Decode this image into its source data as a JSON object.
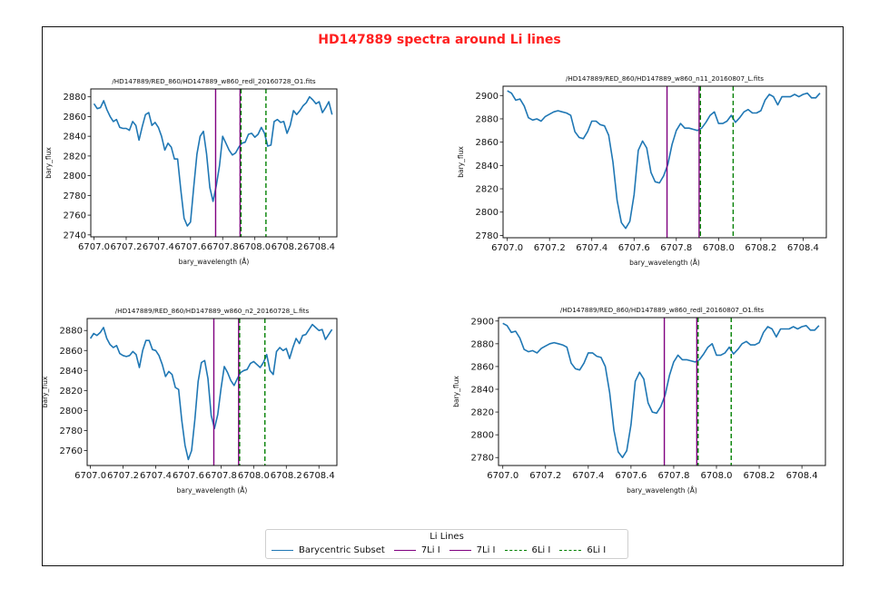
{
  "figure_title": "HD147889 spectra around Li lines",
  "colors": {
    "series": "#1f77b4",
    "li7": "#800080",
    "li6": "#008000",
    "title": "#ff2020"
  },
  "legend": {
    "title": "Li Lines",
    "location": "lower-center",
    "entries": [
      {
        "label": "Barycentric Subset",
        "color": "#1f77b4",
        "style": "solid"
      },
      {
        "label": "7Li I",
        "color": "#800080",
        "style": "solid"
      },
      {
        "label": "7Li I",
        "color": "#800080",
        "style": "solid"
      },
      {
        "label": "6Li I",
        "color": "#008000",
        "style": "dashed"
      },
      {
        "label": "6Li I",
        "color": "#008000",
        "style": "dashed"
      }
    ]
  },
  "chart_data": [
    {
      "type": "line",
      "title": "/HD147889/RED_860/HD147889_w860_redl_20160728_O1.fits",
      "xlabel": "bary_wavelength (Å)",
      "ylabel": "bary_flux",
      "xlim": [
        6706.98,
        6708.51
      ],
      "ylim": [
        2738,
        2888
      ],
      "xticks": [
        6707.0,
        6707.2,
        6707.4,
        6707.6,
        6707.8,
        6708.0,
        6708.2,
        6708.4
      ],
      "yticks": [
        2740,
        2760,
        2780,
        2800,
        2820,
        2840,
        2860,
        2880
      ],
      "x": [
        6707.0,
        6707.02,
        6707.04,
        6707.06,
        6707.08,
        6707.1,
        6707.12,
        6707.14,
        6707.16,
        6707.18,
        6707.2,
        6707.22,
        6707.24,
        6707.26,
        6707.28,
        6707.3,
        6707.32,
        6707.34,
        6707.36,
        6707.38,
        6707.4,
        6707.42,
        6707.44,
        6707.46,
        6707.48,
        6707.5,
        6707.52,
        6707.54,
        6707.56,
        6707.58,
        6707.6,
        6707.62,
        6707.64,
        6707.66,
        6707.68,
        6707.7,
        6707.72,
        6707.74,
        6707.76,
        6707.78,
        6707.8,
        6707.82,
        6707.84,
        6707.86,
        6707.88,
        6707.9,
        6707.92,
        6707.94,
        6707.96,
        6707.98,
        6708.0,
        6708.02,
        6708.04,
        6708.06,
        6708.08,
        6708.1,
        6708.12,
        6708.14,
        6708.16,
        6708.18,
        6708.2,
        6708.22,
        6708.24,
        6708.26,
        6708.28,
        6708.3,
        6708.32,
        6708.34,
        6708.36,
        6708.38,
        6708.4,
        6708.42,
        6708.44,
        6708.46,
        6708.48
      ],
      "series": [
        {
          "values": [
            2873,
            2868,
            2869,
            2876,
            2867,
            2860,
            2855,
            2857,
            2849,
            2848,
            2848,
            2846,
            2855,
            2851,
            2836,
            2850,
            2862,
            2864,
            2851,
            2854,
            2849,
            2840,
            2826,
            2833,
            2829,
            2817,
            2817,
            2785,
            2757,
            2749,
            2753,
            2789,
            2822,
            2840,
            2845,
            2822,
            2788,
            2774,
            2790,
            2810,
            2840,
            2833,
            2826,
            2821,
            2823,
            2829,
            2833,
            2834,
            2842,
            2843,
            2839,
            2842,
            2849,
            2843,
            2830,
            2831,
            2855,
            2857,
            2854,
            2855,
            2843,
            2851,
            2866,
            2862,
            2866,
            2871,
            2874,
            2880,
            2877,
            2873,
            2875,
            2864,
            2869,
            2875,
            2862
          ]
        }
      ],
      "vlines": [
        {
          "x": 6707.756,
          "color": "#800080",
          "style": "solid"
        },
        {
          "x": 6707.908,
          "color": "#800080",
          "style": "solid"
        },
        {
          "x": 6707.914,
          "color": "#008000",
          "style": "dashed"
        },
        {
          "x": 6708.069,
          "color": "#008000",
          "style": "dashed"
        }
      ]
    },
    {
      "type": "line",
      "title": "/HD147889/RED_860/HD147889_w860_n11_20160807_L.fits",
      "xlabel": "bary_wavelength (Å)",
      "ylabel": "bary_flux",
      "xlim": [
        6706.98,
        6708.51
      ],
      "ylim": [
        2778,
        2908
      ],
      "xticks": [
        6707.0,
        6707.2,
        6707.4,
        6707.6,
        6707.8,
        6708.0,
        6708.2,
        6708.4
      ],
      "yticks": [
        2780,
        2800,
        2820,
        2840,
        2860,
        2880,
        2900
      ],
      "x": [
        6707.0,
        6707.02,
        6707.04,
        6707.06,
        6707.08,
        6707.1,
        6707.12,
        6707.14,
        6707.16,
        6707.18,
        6707.2,
        6707.22,
        6707.24,
        6707.26,
        6707.28,
        6707.3,
        6707.32,
        6707.34,
        6707.36,
        6707.38,
        6707.4,
        6707.42,
        6707.44,
        6707.46,
        6707.48,
        6707.5,
        6707.52,
        6707.54,
        6707.56,
        6707.58,
        6707.6,
        6707.62,
        6707.64,
        6707.66,
        6707.68,
        6707.7,
        6707.72,
        6707.74,
        6707.76,
        6707.78,
        6707.8,
        6707.82,
        6707.84,
        6707.86,
        6707.88,
        6707.9,
        6707.92,
        6707.94,
        6707.96,
        6707.98,
        6708.0,
        6708.02,
        6708.04,
        6708.06,
        6708.08,
        6708.1,
        6708.12,
        6708.14,
        6708.16,
        6708.18,
        6708.2,
        6708.22,
        6708.24,
        6708.26,
        6708.28,
        6708.3,
        6708.32,
        6708.34,
        6708.36,
        6708.38,
        6708.4,
        6708.42,
        6708.44,
        6708.46,
        6708.48
      ],
      "series": [
        {
          "values": [
            2904,
            2902,
            2896,
            2897,
            2891,
            2881,
            2879,
            2880,
            2878,
            2882,
            2884,
            2886,
            2887,
            2886,
            2885,
            2883,
            2869,
            2864,
            2863,
            2869,
            2878,
            2878,
            2875,
            2874,
            2866,
            2843,
            2810,
            2791,
            2786,
            2792,
            2815,
            2853,
            2861,
            2855,
            2834,
            2826,
            2825,
            2831,
            2841,
            2858,
            2870,
            2876,
            2872,
            2872,
            2871,
            2870,
            2872,
            2877,
            2883,
            2886,
            2876,
            2876,
            2878,
            2883,
            2877,
            2881,
            2886,
            2888,
            2885,
            2885,
            2887,
            2896,
            2901,
            2899,
            2892,
            2899,
            2899,
            2899,
            2901,
            2899,
            2901,
            2902,
            2898,
            2898,
            2902
          ]
        }
      ],
      "vlines": [
        {
          "x": 6707.756,
          "color": "#800080",
          "style": "solid"
        },
        {
          "x": 6707.908,
          "color": "#800080",
          "style": "solid"
        },
        {
          "x": 6707.914,
          "color": "#008000",
          "style": "dashed"
        },
        {
          "x": 6708.069,
          "color": "#008000",
          "style": "dashed"
        }
      ]
    },
    {
      "type": "line",
      "title": "/HD147889/RED_860/HD147889_w860_n2_20160728_L.fits",
      "xlabel": "bary_wavelength (Å)",
      "ylabel": "bary_flux",
      "xlim": [
        6706.98,
        6708.51
      ],
      "ylim": [
        2745,
        2892
      ],
      "xticks": [
        6707.0,
        6707.2,
        6707.4,
        6707.6,
        6707.8,
        6708.0,
        6708.2,
        6708.4
      ],
      "yticks": [
        2760,
        2780,
        2800,
        2820,
        2840,
        2860,
        2880
      ],
      "x": [
        6707.0,
        6707.02,
        6707.04,
        6707.06,
        6707.08,
        6707.1,
        6707.12,
        6707.14,
        6707.16,
        6707.18,
        6707.2,
        6707.22,
        6707.24,
        6707.26,
        6707.28,
        6707.3,
        6707.32,
        6707.34,
        6707.36,
        6707.38,
        6707.4,
        6707.42,
        6707.44,
        6707.46,
        6707.48,
        6707.5,
        6707.52,
        6707.54,
        6707.56,
        6707.58,
        6707.6,
        6707.62,
        6707.64,
        6707.66,
        6707.68,
        6707.7,
        6707.72,
        6707.74,
        6707.76,
        6707.78,
        6707.8,
        6707.82,
        6707.84,
        6707.86,
        6707.88,
        6707.9,
        6707.92,
        6707.94,
        6707.96,
        6707.98,
        6708.0,
        6708.02,
        6708.04,
        6708.06,
        6708.08,
        6708.1,
        6708.12,
        6708.14,
        6708.16,
        6708.18,
        6708.2,
        6708.22,
        6708.24,
        6708.26,
        6708.28,
        6708.3,
        6708.32,
        6708.34,
        6708.36,
        6708.38,
        6708.4,
        6708.42,
        6708.44,
        6708.46,
        6708.48
      ],
      "series": [
        {
          "values": [
            2872,
            2877,
            2875,
            2878,
            2883,
            2872,
            2866,
            2863,
            2865,
            2857,
            2855,
            2854,
            2855,
            2859,
            2856,
            2843,
            2860,
            2870,
            2870,
            2861,
            2860,
            2855,
            2846,
            2834,
            2839,
            2836,
            2823,
            2821,
            2790,
            2765,
            2751,
            2760,
            2791,
            2829,
            2848,
            2850,
            2832,
            2795,
            2782,
            2796,
            2822,
            2844,
            2838,
            2830,
            2825,
            2832,
            2838,
            2840,
            2841,
            2847,
            2849,
            2846,
            2843,
            2848,
            2856,
            2840,
            2836,
            2859,
            2863,
            2860,
            2862,
            2852,
            2863,
            2872,
            2867,
            2875,
            2876,
            2881,
            2886,
            2883,
            2880,
            2881,
            2871,
            2876,
            2881
          ]
        }
      ],
      "vlines": [
        {
          "x": 6707.756,
          "color": "#800080",
          "style": "solid"
        },
        {
          "x": 6707.908,
          "color": "#800080",
          "style": "solid"
        },
        {
          "x": 6707.914,
          "color": "#008000",
          "style": "dashed"
        },
        {
          "x": 6708.069,
          "color": "#008000",
          "style": "dashed"
        }
      ]
    },
    {
      "type": "line",
      "title": "/HD147889/RED_860/HD147889_w860_redl_20160807_O1.fits",
      "xlabel": "bary_wavelength (Å)",
      "ylabel": "bary_flux",
      "xlim": [
        6706.98,
        6708.51
      ],
      "ylim": [
        2773,
        2903
      ],
      "xticks": [
        6707.0,
        6707.2,
        6707.4,
        6707.6,
        6707.8,
        6708.0,
        6708.2,
        6708.4
      ],
      "yticks": [
        2780,
        2800,
        2820,
        2840,
        2860,
        2880,
        2900
      ],
      "x": [
        6707.0,
        6707.02,
        6707.04,
        6707.06,
        6707.08,
        6707.1,
        6707.12,
        6707.14,
        6707.16,
        6707.18,
        6707.2,
        6707.22,
        6707.24,
        6707.26,
        6707.28,
        6707.3,
        6707.32,
        6707.34,
        6707.36,
        6707.38,
        6707.4,
        6707.42,
        6707.44,
        6707.46,
        6707.48,
        6707.5,
        6707.52,
        6707.54,
        6707.56,
        6707.58,
        6707.6,
        6707.62,
        6707.64,
        6707.66,
        6707.68,
        6707.7,
        6707.72,
        6707.74,
        6707.76,
        6707.78,
        6707.8,
        6707.82,
        6707.84,
        6707.86,
        6707.88,
        6707.9,
        6707.92,
        6707.94,
        6707.96,
        6707.98,
        6708.0,
        6708.02,
        6708.04,
        6708.06,
        6708.08,
        6708.1,
        6708.12,
        6708.14,
        6708.16,
        6708.18,
        6708.2,
        6708.22,
        6708.24,
        6708.26,
        6708.28,
        6708.3,
        6708.32,
        6708.34,
        6708.36,
        6708.38,
        6708.4,
        6708.42,
        6708.44,
        6708.46,
        6708.48
      ],
      "series": [
        {
          "values": [
            2898,
            2896,
            2890,
            2891,
            2885,
            2875,
            2873,
            2874,
            2872,
            2876,
            2878,
            2880,
            2881,
            2880,
            2879,
            2877,
            2863,
            2858,
            2857,
            2863,
            2872,
            2872,
            2869,
            2868,
            2860,
            2837,
            2804,
            2785,
            2780,
            2786,
            2809,
            2847,
            2855,
            2849,
            2828,
            2820,
            2819,
            2825,
            2835,
            2852,
            2864,
            2870,
            2866,
            2866,
            2865,
            2864,
            2866,
            2871,
            2877,
            2880,
            2870,
            2870,
            2872,
            2877,
            2871,
            2875,
            2880,
            2882,
            2879,
            2879,
            2881,
            2890,
            2895,
            2893,
            2886,
            2893,
            2893,
            2893,
            2895,
            2893,
            2895,
            2896,
            2892,
            2892,
            2896
          ]
        }
      ],
      "vlines": [
        {
          "x": 6707.756,
          "color": "#800080",
          "style": "solid"
        },
        {
          "x": 6707.908,
          "color": "#800080",
          "style": "solid"
        },
        {
          "x": 6707.914,
          "color": "#008000",
          "style": "dashed"
        },
        {
          "x": 6708.069,
          "color": "#008000",
          "style": "dashed"
        }
      ]
    }
  ]
}
